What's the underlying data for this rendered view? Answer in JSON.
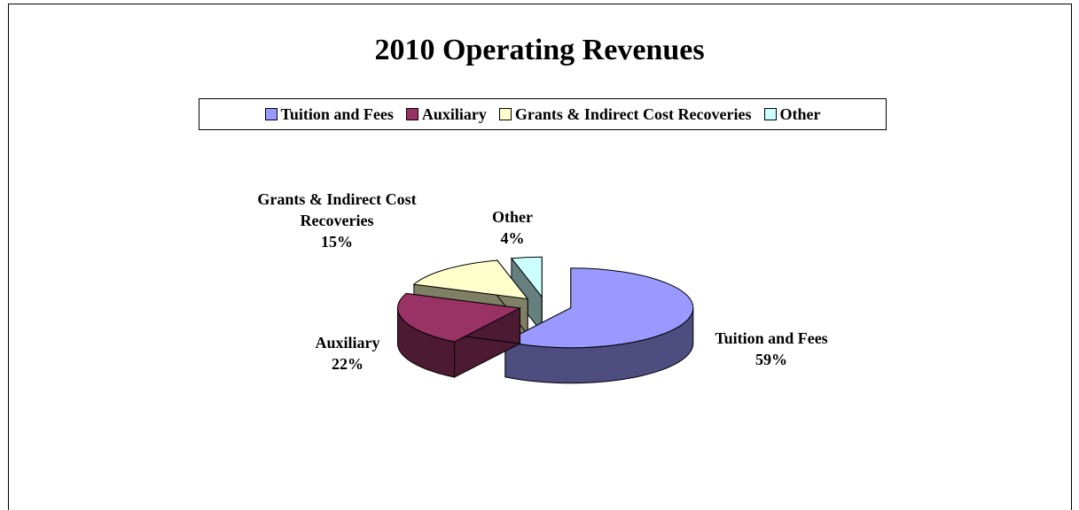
{
  "chart_data": {
    "type": "pie",
    "title": "2010 Operating Revenues",
    "categories": [
      "Tuition and Fees",
      "Auxiliary",
      "Grants & Indirect Cost Recoveries",
      "Other"
    ],
    "values": [
      59,
      22,
      15,
      4
    ],
    "value_labels": [
      "59%",
      "22%",
      "15%",
      "4%"
    ],
    "colors": [
      "#9999ff",
      "#993366",
      "#ffffcc",
      "#ccffff"
    ],
    "legend": "top",
    "exploded": true,
    "three_d": true
  }
}
